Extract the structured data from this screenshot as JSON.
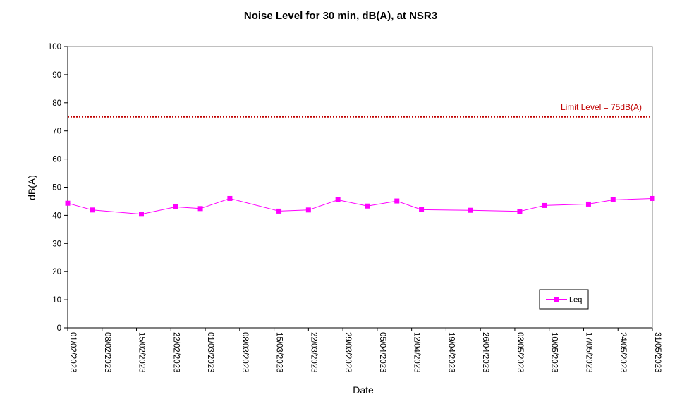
{
  "chart_data": {
    "type": "line",
    "title": "Noise Level for 30 min, dB(A), at NSR3",
    "xlabel": "Date",
    "ylabel": "dB(A)",
    "ylim": [
      0,
      100
    ],
    "yticks": [
      0,
      10,
      20,
      30,
      40,
      50,
      60,
      70,
      80,
      90,
      100
    ],
    "xlim": [
      "01/02/2023",
      "31/05/2023"
    ],
    "xticks": [
      "01/02/2023",
      "08/02/2023",
      "15/02/2023",
      "22/02/2023",
      "01/03/2023",
      "08/03/2023",
      "15/03/2023",
      "22/03/2023",
      "29/03/2023",
      "05/04/2023",
      "12/04/2023",
      "19/04/2023",
      "26/04/2023",
      "03/05/2023",
      "10/05/2023",
      "17/05/2023",
      "24/05/2023",
      "31/05/2023"
    ],
    "grid": false,
    "legend_position": "bottom-right",
    "series": [
      {
        "name": "Leq",
        "color": "#ff00ff",
        "marker": "square",
        "x": [
          "01/02/2023",
          "06/02/2023",
          "16/02/2023",
          "23/02/2023",
          "28/02/2023",
          "06/03/2023",
          "16/03/2023",
          "22/03/2023",
          "28/03/2023",
          "03/04/2023",
          "09/04/2023",
          "14/04/2023",
          "24/04/2023",
          "04/05/2023",
          "09/05/2023",
          "18/05/2023",
          "23/05/2023",
          "31/05/2023"
        ],
        "values": [
          44.3,
          41.9,
          40.4,
          43.0,
          42.4,
          46.0,
          41.5,
          41.9,
          45.5,
          43.3,
          45.1,
          42.0,
          41.8,
          41.4,
          43.5,
          44.0,
          45.5,
          46.0
        ]
      }
    ],
    "limit_line": {
      "label": "Limit Level  = 75dB(A)",
      "value": 75,
      "color": "#c00000"
    }
  }
}
